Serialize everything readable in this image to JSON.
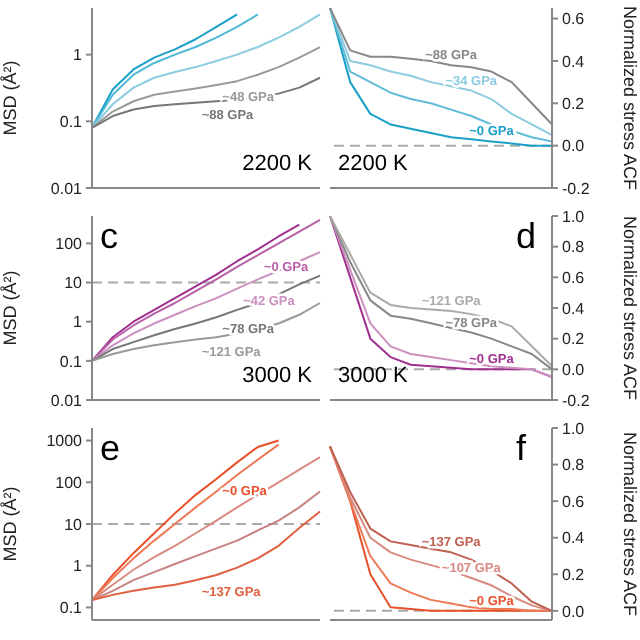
{
  "chart_data": [
    {
      "type": "line",
      "ylabel": "MSD (Å²)",
      "annotations": [
        "2200 K"
      ],
      "categories": [
        null,
        null,
        null,
        null,
        null,
        null,
        null,
        null,
        null,
        null,
        null,
        null
      ],
      "log": "y",
      "ylim": [
        0.01,
        5
      ],
      "yticks": [
        0.01,
        0.1,
        1
      ],
      "tick_labels": "y",
      "grid": false,
      "legend": false,
      "marker": "none",
      "line_style": "solid",
      "series": [
        {
          "color": "#1aa0c8",
          "values": [
            0.08,
            0.3,
            0.6,
            0.9,
            1.2,
            1.7,
            2.6,
            4,
            null,
            null,
            null,
            null
          ]
        },
        {
          "color": "#4fb8d6",
          "values": [
            0.08,
            0.25,
            0.5,
            0.75,
            1,
            1.3,
            1.8,
            2.6,
            4,
            null,
            null,
            null
          ]
        },
        {
          "color": "#8ccbe0",
          "values": [
            0.08,
            0.18,
            0.32,
            0.45,
            0.55,
            0.65,
            0.8,
            1,
            1.3,
            1.8,
            2.6,
            4
          ]
        },
        {
          "name": "~48 GPa",
          "color": "#9a9a9a",
          "values": [
            0.08,
            0.14,
            0.2,
            0.25,
            0.28,
            0.31,
            0.35,
            0.4,
            0.5,
            0.65,
            0.9,
            1.3
          ]
        },
        {
          "name": "~88 GPa",
          "color": "#777777",
          "values": [
            0.08,
            0.12,
            0.15,
            0.17,
            0.18,
            0.19,
            0.2,
            0.21,
            0.23,
            0.26,
            0.32,
            0.45
          ]
        }
      ]
    },
    {
      "type": "line",
      "ylabel": "Normalized stress ACF",
      "annotations": [
        "2200 K"
      ],
      "categories": [
        null,
        null,
        null,
        null,
        null,
        null,
        null,
        null,
        null,
        null,
        null,
        null
      ],
      "ylim": [
        -0.2,
        0.65
      ],
      "yticks": [
        {
          "value": -0.2,
          "label": "-0.2"
        },
        {
          "value": 0,
          "label": "0.0"
        },
        0.2,
        0.4,
        0.6
      ],
      "tick_labels": "y",
      "grid": false,
      "legend": false,
      "marker": "none",
      "line_style": "solid",
      "series": [
        {
          "name": "~0 GPa",
          "color": "#1aa0c8",
          "values": [
            0.65,
            0.3,
            0.15,
            0.1,
            0.08,
            0.06,
            0.04,
            0.03,
            0.02,
            0.01,
            0,
            0
          ]
        },
        {
          "color": "#60bcd8",
          "values": [
            0.65,
            0.35,
            0.3,
            0.25,
            0.22,
            0.2,
            0.17,
            0.14,
            0.1,
            0.07,
            0.04,
            0.02
          ]
        },
        {
          "name": "~34 GPa",
          "color": "#8ccbe0",
          "values": [
            0.65,
            0.4,
            0.38,
            0.35,
            0.33,
            0.3,
            0.28,
            0.26,
            0.22,
            0.15,
            0.1,
            0.05
          ]
        },
        {
          "name": "~88 GPa",
          "color": "#888888",
          "values": [
            0.65,
            0.45,
            0.42,
            0.42,
            0.41,
            0.4,
            0.38,
            0.37,
            0.35,
            0.3,
            0.2,
            0.1
          ]
        }
      ],
      "ref_lines": [
        {
          "axis": "y",
          "value": 0,
          "color": "#aaaaaa",
          "line_style": "dashed"
        }
      ]
    },
    {
      "type": "line",
      "ylabel": "MSD (Å²)",
      "annotations": [
        "c",
        "3000 K"
      ],
      "categories": [
        null,
        null,
        null,
        null,
        null,
        null,
        null,
        null,
        null,
        null,
        null,
        null
      ],
      "log": "y",
      "ylim": [
        0.01,
        500
      ],
      "yticks": [
        0.01,
        0.1,
        1,
        10,
        100
      ],
      "tick_labels": "y",
      "grid": false,
      "legend": false,
      "marker": "none",
      "line_style": "solid",
      "series": [
        {
          "color": "#a0308f",
          "values": [
            0.1,
            0.4,
            1,
            2,
            4,
            8,
            16,
            35,
            70,
            150,
            300,
            null
          ]
        },
        {
          "name": "~0 GPa",
          "color": "#b860a8",
          "values": [
            0.1,
            0.35,
            0.8,
            1.6,
            3,
            6,
            12,
            25,
            50,
            100,
            200,
            400
          ]
        },
        {
          "name": "~42 GPa",
          "color": "#cc90c0",
          "values": [
            0.1,
            0.25,
            0.5,
            0.9,
            1.5,
            2.5,
            4,
            7,
            12,
            20,
            35,
            60
          ]
        },
        {
          "name": "~78 GPa",
          "color": "#777777",
          "values": [
            0.1,
            0.2,
            0.3,
            0.45,
            0.65,
            0.9,
            1.3,
            2,
            3,
            5,
            9,
            15
          ]
        },
        {
          "name": "~121 GPa",
          "color": "#999999",
          "values": [
            0.1,
            0.15,
            0.2,
            0.25,
            0.3,
            0.35,
            0.4,
            0.5,
            0.65,
            0.9,
            1.5,
            3
          ]
        }
      ],
      "ref_lines": [
        {
          "axis": "y",
          "value": 10,
          "color": "#aaaaaa",
          "line_style": "dashed"
        }
      ]
    },
    {
      "type": "line",
      "ylabel": "Normalized stress ACF",
      "annotations": [
        "d",
        "3000 K"
      ],
      "categories": [
        null,
        null,
        null,
        null,
        null,
        null,
        null,
        null,
        null,
        null,
        null,
        null
      ],
      "ylim": [
        -0.2,
        1
      ],
      "yticks": [
        {
          "value": -0.2,
          "label": "-0.2"
        },
        {
          "value": 0,
          "label": "0.0"
        },
        0.2,
        0.4,
        0.6,
        0.8,
        {
          "value": 1,
          "label": "1.0"
        }
      ],
      "tick_labels": "y",
      "grid": false,
      "legend": false,
      "marker": "none",
      "line_style": "solid",
      "series": [
        {
          "name": "~0 GPa",
          "color": "#a0308f",
          "values": [
            1,
            0.6,
            0.2,
            0.08,
            0.03,
            0.02,
            0.01,
            0,
            0,
            0,
            0,
            -0.05
          ]
        },
        {
          "color": "#cc90c0",
          "values": [
            1,
            0.65,
            0.3,
            0.15,
            0.1,
            0.08,
            0.06,
            0.04,
            0.02,
            0.01,
            0,
            -0.05
          ]
        },
        {
          "name": "~78 GPa",
          "color": "#888888",
          "values": [
            1,
            0.7,
            0.45,
            0.35,
            0.33,
            0.3,
            0.27,
            0.24,
            0.2,
            0.15,
            0.1,
            0
          ]
        },
        {
          "name": "~121 GPa",
          "color": "#aaaaaa",
          "values": [
            1,
            0.75,
            0.5,
            0.42,
            0.4,
            0.39,
            0.38,
            0.36,
            0.33,
            0.28,
            0.15,
            0.02
          ]
        }
      ],
      "ref_lines": [
        {
          "axis": "y",
          "value": 0,
          "color": "#aaaaaa",
          "line_style": "dashed"
        }
      ]
    },
    {
      "type": "line",
      "ylabel": "MSD (Å²)",
      "annotations": [
        "e"
      ],
      "categories": [
        null,
        null,
        null,
        null,
        null,
        null,
        null,
        null,
        null,
        null,
        null,
        null
      ],
      "log": "y",
      "ylim": [
        0.05,
        2000
      ],
      "yticks": [
        0.1,
        1,
        10,
        100,
        1000
      ],
      "tick_labels": "y",
      "grid": false,
      "legend": false,
      "marker": "none",
      "line_style": "solid",
      "series": [
        {
          "name": "~0 GPa",
          "color": "#e8502a",
          "values": [
            0.15,
            0.6,
            2,
            6,
            18,
            50,
            120,
            300,
            700,
            1000,
            null,
            null
          ]
        },
        {
          "color": "#ee7a55",
          "values": [
            0.15,
            0.5,
            1.5,
            4,
            10,
            25,
            60,
            150,
            350,
            800,
            null,
            null
          ]
        },
        {
          "color": "#d98a80",
          "values": [
            0.15,
            0.35,
            0.8,
            1.6,
            3,
            6,
            12,
            25,
            50,
            100,
            200,
            400
          ]
        },
        {
          "color": "#c88080",
          "values": [
            0.15,
            0.25,
            0.45,
            0.7,
            1.1,
            1.7,
            2.6,
            4,
            7,
            12,
            25,
            60
          ]
        },
        {
          "name": "~137 GPa",
          "color": "#e06040",
          "values": [
            0.15,
            0.2,
            0.25,
            0.3,
            0.35,
            0.45,
            0.6,
            0.9,
            1.5,
            3,
            8,
            20
          ]
        }
      ],
      "ref_lines": [
        {
          "axis": "y",
          "value": 10,
          "color": "#aaaaaa",
          "line_style": "dashed"
        }
      ]
    },
    {
      "type": "line",
      "ylabel": "Normalized stress ACF",
      "annotations": [
        "f"
      ],
      "categories": [
        null,
        null,
        null,
        null,
        null,
        null,
        null,
        null,
        null,
        null,
        null,
        null
      ],
      "ylim": [
        -0.05,
        1
      ],
      "yticks": [
        {
          "value": 0,
          "label": "0.0"
        },
        0.2,
        0.4,
        0.6,
        0.8,
        {
          "value": 1,
          "label": "1.0"
        }
      ],
      "tick_labels": "y",
      "grid": false,
      "legend": false,
      "marker": "none",
      "line_style": "solid",
      "series": [
        {
          "name": "~0 GPa",
          "color": "#e8502a",
          "values": [
            0.9,
            0.6,
            0.2,
            0.02,
            0.01,
            0,
            0,
            0,
            0,
            0,
            0,
            0
          ]
        },
        {
          "color": "#ee7a55",
          "values": [
            0.9,
            0.6,
            0.3,
            0.15,
            0.1,
            0.06,
            0.04,
            0.02,
            0.01,
            0.01,
            0,
            0
          ]
        },
        {
          "name": "~107 GPa",
          "color": "#d98a80",
          "values": [
            0.9,
            0.62,
            0.4,
            0.32,
            0.28,
            0.25,
            0.22,
            0.18,
            0.14,
            0.08,
            0.03,
            0
          ]
        },
        {
          "name": "~137 GPa",
          "color": "#c06050",
          "values": [
            0.9,
            0.65,
            0.45,
            0.38,
            0.36,
            0.34,
            0.32,
            0.28,
            0.22,
            0.15,
            0.05,
            0
          ]
        }
      ],
      "ref_lines": [
        {
          "axis": "y",
          "value": 0,
          "color": "#aaaaaa",
          "line_style": "dashed"
        }
      ]
    }
  ]
}
